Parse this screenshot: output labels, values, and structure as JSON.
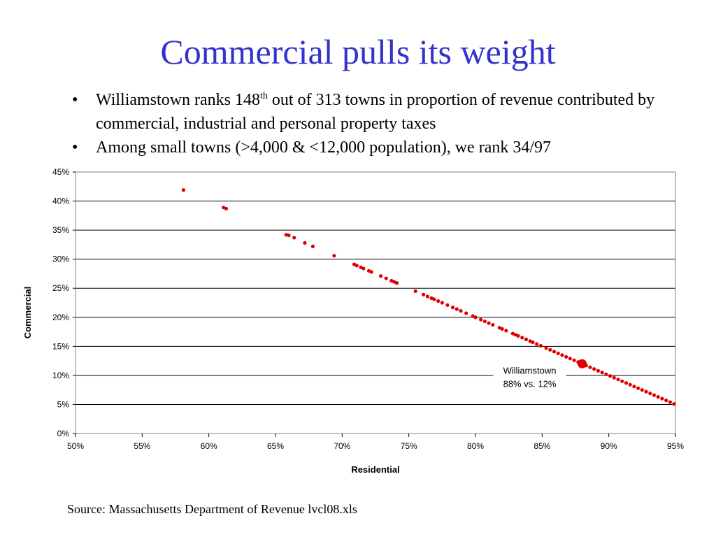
{
  "slide": {
    "title": "Commercial pulls its weight",
    "bullets": [
      {
        "pre": "Williamstown ranks 148",
        "sup": "th",
        "post": " out of 313 towns in proportion of revenue contributed by commercial, industrial and personal property taxes"
      },
      {
        "pre": "Among small towns (>4,000 & <12,000 population), we rank 34/97",
        "sup": "",
        "post": ""
      }
    ],
    "bullet_glyph": "•",
    "source": "Source: Massachusetts Department of Revenue lvcl08.xls"
  },
  "chart_data": {
    "type": "scatter",
    "xlabel": "Residential",
    "ylabel": "Commercial",
    "xlim": [
      0.5,
      0.95
    ],
    "ylim": [
      0.0,
      0.45
    ],
    "x_ticks": [
      "50%",
      "55%",
      "60%",
      "65%",
      "70%",
      "75%",
      "80%",
      "85%",
      "90%",
      "95%"
    ],
    "y_ticks": [
      "0%",
      "5%",
      "10%",
      "15%",
      "20%",
      "25%",
      "30%",
      "35%",
      "40%",
      "45%"
    ],
    "grid": true,
    "point_color": "#dd0000",
    "highlight": {
      "x": 0.88,
      "y": 0.12
    },
    "annotation_lines": [
      "Williamstown",
      "88% vs. 12%"
    ],
    "points": [
      [
        0.581,
        0.419
      ],
      [
        0.611,
        0.389
      ],
      [
        0.613,
        0.387
      ],
      [
        0.658,
        0.342
      ],
      [
        0.66,
        0.341
      ],
      [
        0.664,
        0.337
      ],
      [
        0.672,
        0.328
      ],
      [
        0.678,
        0.322
      ],
      [
        0.694,
        0.306
      ],
      [
        0.709,
        0.291
      ],
      [
        0.711,
        0.289
      ],
      [
        0.714,
        0.286
      ],
      [
        0.716,
        0.284
      ],
      [
        0.72,
        0.28
      ],
      [
        0.722,
        0.278
      ],
      [
        0.729,
        0.271
      ],
      [
        0.733,
        0.267
      ],
      [
        0.737,
        0.263
      ],
      [
        0.739,
        0.261
      ],
      [
        0.741,
        0.259
      ],
      [
        0.755,
        0.245
      ],
      [
        0.761,
        0.239
      ],
      [
        0.764,
        0.236
      ],
      [
        0.767,
        0.233
      ],
      [
        0.769,
        0.231
      ],
      [
        0.772,
        0.228
      ],
      [
        0.775,
        0.225
      ],
      [
        0.779,
        0.221
      ],
      [
        0.783,
        0.217
      ],
      [
        0.786,
        0.214
      ],
      [
        0.789,
        0.211
      ],
      [
        0.793,
        0.207
      ],
      [
        0.798,
        0.202
      ],
      [
        0.8,
        0.2
      ],
      [
        0.804,
        0.196
      ],
      [
        0.807,
        0.193
      ],
      [
        0.81,
        0.19
      ],
      [
        0.813,
        0.187
      ],
      [
        0.818,
        0.182
      ],
      [
        0.82,
        0.18
      ],
      [
        0.823,
        0.177
      ],
      [
        0.828,
        0.172
      ],
      [
        0.83,
        0.17
      ],
      [
        0.832,
        0.168
      ],
      [
        0.835,
        0.165
      ],
      [
        0.838,
        0.162
      ],
      [
        0.841,
        0.159
      ],
      [
        0.843,
        0.157
      ],
      [
        0.846,
        0.154
      ],
      [
        0.849,
        0.151
      ],
      [
        0.853,
        0.147
      ],
      [
        0.856,
        0.144
      ],
      [
        0.859,
        0.141
      ],
      [
        0.862,
        0.138
      ],
      [
        0.865,
        0.135
      ],
      [
        0.868,
        0.132
      ],
      [
        0.871,
        0.129
      ],
      [
        0.874,
        0.126
      ],
      [
        0.877,
        0.123
      ],
      [
        0.883,
        0.117
      ],
      [
        0.886,
        0.114
      ],
      [
        0.889,
        0.111
      ],
      [
        0.892,
        0.108
      ],
      [
        0.895,
        0.105
      ],
      [
        0.898,
        0.102
      ],
      [
        0.901,
        0.099
      ],
      [
        0.904,
        0.096
      ],
      [
        0.907,
        0.093
      ],
      [
        0.91,
        0.09
      ],
      [
        0.913,
        0.087
      ],
      [
        0.916,
        0.084
      ],
      [
        0.919,
        0.081
      ],
      [
        0.922,
        0.078
      ],
      [
        0.925,
        0.075
      ],
      [
        0.928,
        0.072
      ],
      [
        0.931,
        0.069
      ],
      [
        0.934,
        0.066
      ],
      [
        0.937,
        0.063
      ],
      [
        0.94,
        0.06
      ],
      [
        0.943,
        0.057
      ],
      [
        0.946,
        0.054
      ],
      [
        0.949,
        0.051
      ]
    ]
  }
}
